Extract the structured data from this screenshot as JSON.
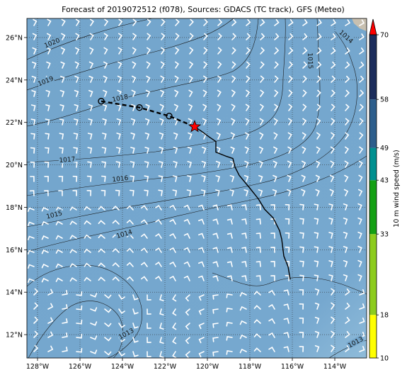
{
  "title": "Forecast of 2019072512 (f078), Sources: GDACS (TC track), GFS (Meteo)",
  "map": {
    "lon_range": [
      -128.5,
      -112.5
    ],
    "lat_range": [
      10.9,
      26.9
    ],
    "lon_ticks": [
      {
        "value": -128,
        "label": "128°W"
      },
      {
        "value": -126,
        "label": "126°W"
      },
      {
        "value": -124,
        "label": "124°W"
      },
      {
        "value": -122,
        "label": "122°W"
      },
      {
        "value": -120,
        "label": "120°W"
      },
      {
        "value": -118,
        "label": "118°W"
      },
      {
        "value": -116,
        "label": "116°W"
      },
      {
        "value": -114,
        "label": "114°W"
      }
    ],
    "lat_ticks": [
      {
        "value": 12,
        "label": "12°N"
      },
      {
        "value": 14,
        "label": "14°N"
      },
      {
        "value": 16,
        "label": "16°N"
      },
      {
        "value": 18,
        "label": "18°N"
      },
      {
        "value": 20,
        "label": "20°N"
      },
      {
        "value": 22,
        "label": "22°N"
      },
      {
        "value": 24,
        "label": "24°N"
      },
      {
        "value": 26,
        "label": "26°N"
      }
    ],
    "ocean_color": "#75a7cd",
    "land_color": "#c8c0b0",
    "grid": "dotted"
  },
  "isobar_labels": [
    {
      "text": "1020",
      "lon": -127.3,
      "lat": 25.7,
      "angle": -22
    },
    {
      "text": "1019",
      "lon": -127.6,
      "lat": 23.9,
      "angle": -22
    },
    {
      "text": "1018",
      "lon": -124.1,
      "lat": 23.1,
      "angle": -12
    },
    {
      "text": "1017",
      "lon": -126.6,
      "lat": 20.2,
      "angle": -5
    },
    {
      "text": "1016",
      "lon": -124.1,
      "lat": 19.3,
      "angle": -6
    },
    {
      "text": "1015",
      "lon": -127.2,
      "lat": 17.6,
      "angle": -14
    },
    {
      "text": "1014",
      "lon": -123.9,
      "lat": 16.7,
      "angle": -17
    },
    {
      "text": "1015",
      "lon": -115.2,
      "lat": 24.9,
      "angle": 88
    },
    {
      "text": "1014",
      "lon": -113.5,
      "lat": 26.0,
      "angle": 42
    },
    {
      "text": "1013",
      "lon": -123.8,
      "lat": 12.0,
      "angle": -28
    },
    {
      "text": "1013",
      "lon": -113.0,
      "lat": 11.6,
      "angle": -28
    }
  ],
  "forecast_track": [
    [
      -125.0,
      23.0
    ],
    [
      -123.2,
      22.7
    ],
    [
      -121.8,
      22.3
    ],
    [
      -120.6,
      21.8
    ]
  ],
  "past_track": [
    [
      -120.6,
      21.8
    ],
    [
      -120.3,
      21.6
    ],
    [
      -119.9,
      21.3
    ],
    [
      -119.6,
      21.1
    ],
    [
      -119.6,
      20.6
    ],
    [
      -119.1,
      20.4
    ],
    [
      -118.8,
      20.3
    ],
    [
      -118.7,
      19.9
    ],
    [
      -118.5,
      19.5
    ],
    [
      -118.0,
      18.9
    ],
    [
      -117.6,
      18.4
    ],
    [
      -117.3,
      17.9
    ],
    [
      -116.9,
      17.5
    ],
    [
      -116.6,
      16.9
    ],
    [
      -116.5,
      16.5
    ],
    [
      -116.4,
      15.7
    ],
    [
      -116.2,
      15.2
    ],
    [
      -116.1,
      14.6
    ]
  ],
  "forecast_points": [
    [
      -125.0,
      23.0
    ],
    [
      -123.2,
      22.7
    ],
    [
      -121.8,
      22.3
    ]
  ],
  "current_position": {
    "lon": -120.6,
    "lat": 21.8
  },
  "colorbar": {
    "label": "10 m wind speed (m/s)",
    "bounds": [
      10,
      18,
      33,
      43,
      49,
      58,
      70
    ],
    "colors": [
      "#ffff00",
      "#8ccc1e",
      "#14a014",
      "#009090",
      "#2d5e8c",
      "#1c2d5c"
    ],
    "extend_color": "#ff0000"
  }
}
